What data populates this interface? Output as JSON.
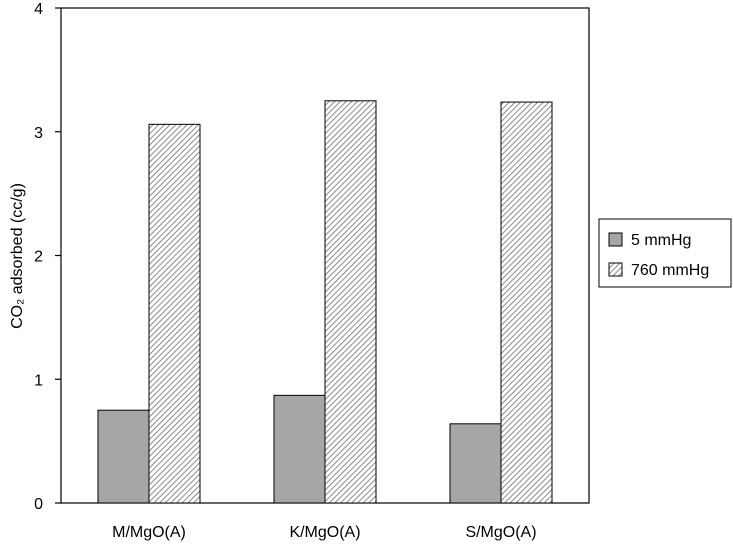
{
  "chart_data": {
    "type": "bar",
    "categories": [
      "M/MgO(A)",
      "K/MgO(A)",
      "S/MgO(A)"
    ],
    "series": [
      {
        "name": "5 mmHg",
        "values": [
          0.75,
          0.87,
          0.64
        ],
        "fill": "#a6a6a6",
        "pattern": "solid"
      },
      {
        "name": "760 mmHg",
        "values": [
          3.06,
          3.25,
          3.24
        ],
        "fill": "#ffffff",
        "pattern": "diagonal-hatch"
      }
    ],
    "title": "",
    "xlabel": "",
    "ylabel": "CO₂ adsorbed (cc/g)",
    "ylim": [
      0,
      4
    ],
    "yticks": [
      "0",
      "1",
      "2",
      "3",
      "4"
    ],
    "grid": false,
    "legend_position": "right"
  }
}
